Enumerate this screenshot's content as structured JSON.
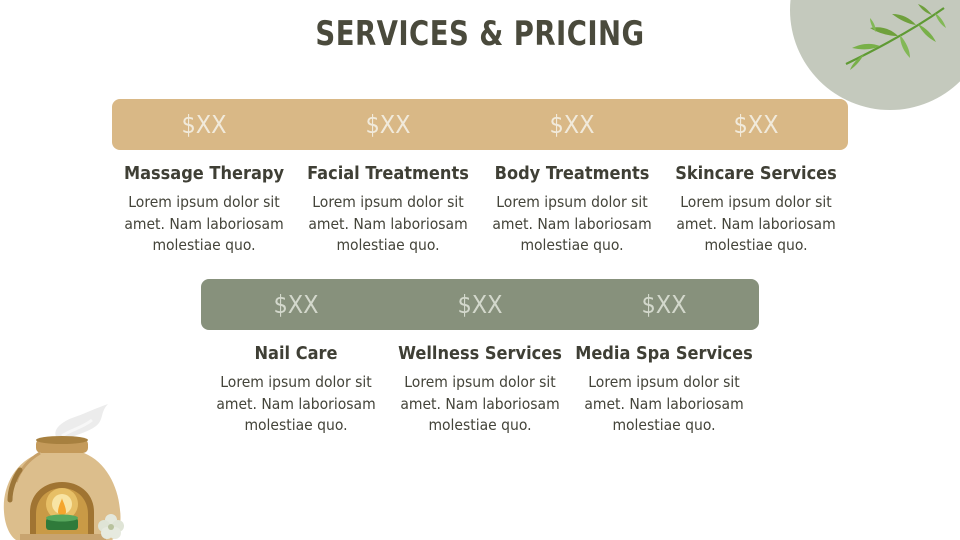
{
  "title": "SERVICES & PRICING",
  "row1": [
    {
      "price": "$XX",
      "name": "Massage Therapy",
      "desc": "Lorem ipsum dolor sit amet. Nam laboriosam molestiae quo."
    },
    {
      "price": "$XX",
      "name": "Facial Treatments",
      "desc": "Lorem ipsum dolor sit amet. Nam laboriosam molestiae quo."
    },
    {
      "price": "$XX",
      "name": "Body Treatments",
      "desc": "Lorem ipsum dolor sit amet. Nam laboriosam molestiae quo."
    },
    {
      "price": "$XX",
      "name": "Skincare Services",
      "desc": "Lorem ipsum dolor sit amet. Nam laboriosam molestiae quo."
    }
  ],
  "row2": [
    {
      "price": "$XX",
      "name": "Nail Care",
      "desc": "Lorem ipsum dolor sit amet. Nam laboriosam molestiae quo."
    },
    {
      "price": "$XX",
      "name": "Wellness Services",
      "desc": "Lorem ipsum dolor sit amet. Nam laboriosam molestiae quo."
    },
    {
      "price": "$XX",
      "name": "Media Spa Services",
      "desc": "Lorem ipsum dolor sit amet. Nam laboriosam molestiae quo."
    }
  ],
  "colors": {
    "gold_band": "#d9b886",
    "sage_band": "#87917c",
    "title_text": "#4a4a3c",
    "corner_blob": "#c4c9bd",
    "leaf": "#6fa03c"
  },
  "icons": [
    "leaf-sprig-icon",
    "aroma-lamp-icon",
    "flower-icon"
  ]
}
